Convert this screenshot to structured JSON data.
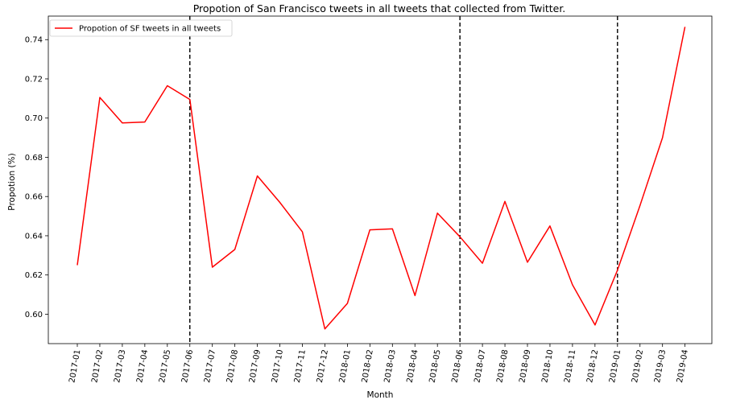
{
  "chart_data": {
    "type": "line",
    "title": "Propotion of San Francisco tweets in all tweets that collected from Twitter.",
    "xlabel": "Month",
    "ylabel": "Propotion (%)",
    "ylim": [
      0.585,
      0.752
    ],
    "yticks": [
      "0.60",
      "0.62",
      "0.64",
      "0.66",
      "0.68",
      "0.70",
      "0.72",
      "0.74"
    ],
    "grid": false,
    "legend_position": "top-left",
    "categories": [
      "2017-01",
      "2017-02",
      "2017-03",
      "2017-04",
      "2017-05",
      "2017-06",
      "2017-07",
      "2017-08",
      "2017-09",
      "2017-10",
      "2017-11",
      "2017-12",
      "2018-01",
      "2018-02",
      "2018-03",
      "2018-04",
      "2018-05",
      "2018-06",
      "2018-07",
      "2018-08",
      "2018-09",
      "2018-10",
      "2018-11",
      "2018-12",
      "2019-01",
      "2019-02",
      "2019-03",
      "2019-04"
    ],
    "series": [
      {
        "name": "Propotion of SF tweets in all tweets",
        "color": "#ff0000",
        "values": [
          0.625,
          0.7105,
          0.6975,
          0.698,
          0.7165,
          0.7095,
          0.624,
          0.633,
          0.6705,
          0.657,
          0.642,
          0.5925,
          0.6055,
          0.643,
          0.6435,
          0.6095,
          0.6515,
          0.6395,
          0.626,
          0.6575,
          0.6265,
          0.645,
          0.615,
          0.5945,
          0.6225,
          0.6555,
          0.69,
          0.7465
        ]
      }
    ],
    "vlines": {
      "positions": [
        "2017-06",
        "2018-06",
        "2019-01"
      ],
      "style": "dashed",
      "color": "#000000"
    }
  }
}
